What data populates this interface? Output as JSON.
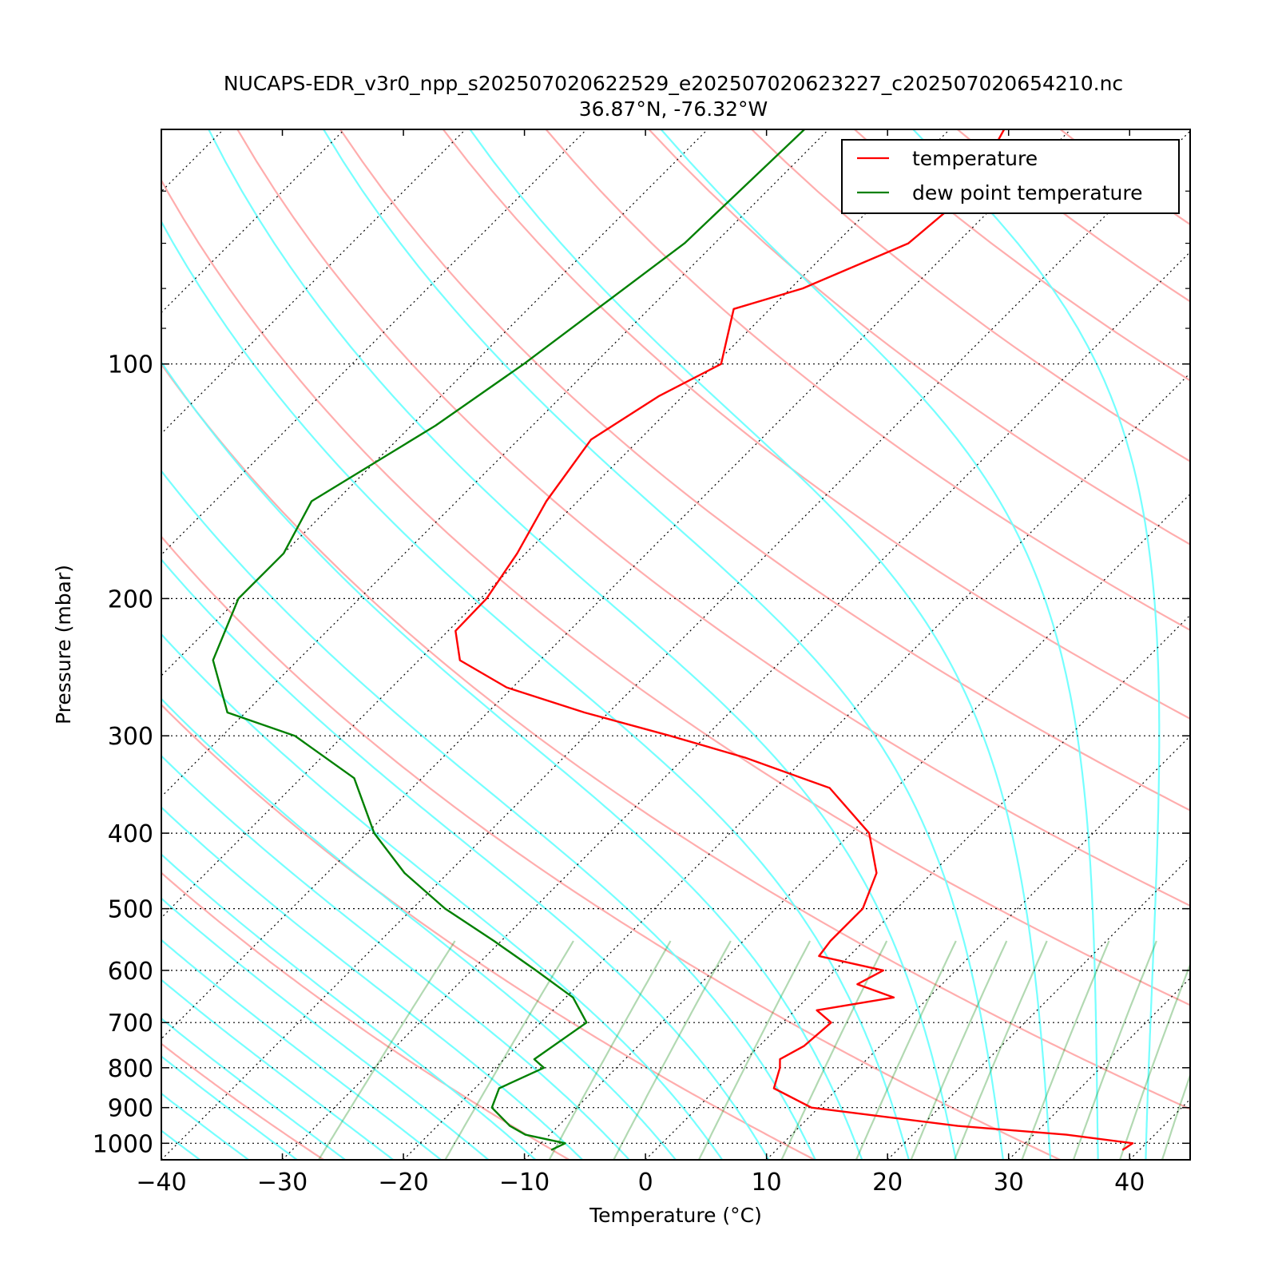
{
  "chart_data": {
    "type": "line",
    "title": "NUCAPS-EDR_v3r0_npp_s202507020622529_e202507020623227_c202507020654210.nc",
    "subtitle": "36.87°N, -76.32°W",
    "xlabel": "Temperature (°C)",
    "ylabel": "Pressure (mbar)",
    "xlim": [
      -40,
      45
    ],
    "ylim": [
      1050,
      50
    ],
    "y_scale": "log",
    "skew_degrees": 45,
    "grid": true,
    "legend_position": "top-right",
    "x_ticks": [
      "−40",
      "−30",
      "−20",
      "−10",
      "0",
      "10",
      "20",
      "30",
      "40"
    ],
    "y_ticks": [
      "100",
      "200",
      "300",
      "400",
      "500",
      "600",
      "700",
      "800",
      "900",
      "1000"
    ],
    "series": [
      {
        "name": "temperature",
        "color": "#ff0000",
        "p": [
          50,
          60,
          70,
          80,
          85,
          100,
          110,
          125,
          150,
          175,
          200,
          220,
          240,
          260,
          280,
          300,
          320,
          350,
          400,
          450,
          500,
          550,
          575,
          600,
          625,
          650,
          675,
          700,
          750,
          780,
          800,
          850,
          900,
          950,
          975,
          1000,
          1020
        ],
        "t": [
          -55.5,
          -53.2,
          -54.0,
          -59.0,
          -63.0,
          -59.5,
          -62.0,
          -64.0,
          -62.6,
          -60.7,
          -59.5,
          -59.4,
          -56.6,
          -50.5,
          -42.0,
          -33.0,
          -25.0,
          -15.5,
          -8.5,
          -4.6,
          -2.8,
          -2.8,
          -2.5,
          4.0,
          3.0,
          7.1,
          1.8,
          4.0,
          3.7,
          2.8,
          3.5,
          4.7,
          9.4,
          23.0,
          32.7,
          38.9,
          38.6
        ]
      },
      {
        "name": "dew point temperature",
        "color": "#008000",
        "p": [
          50,
          70,
          100,
          120,
          150,
          175,
          200,
          240,
          280,
          300,
          340,
          400,
          450,
          500,
          550,
          600,
          650,
          700,
          780,
          800,
          850,
          900,
          950,
          975,
          1000,
          1020
        ],
        "t": [
          -72.0,
          -72.5,
          -75.8,
          -78.0,
          -82.0,
          -80.0,
          -80.0,
          -77.0,
          -71.5,
          -64.0,
          -55.6,
          -49.4,
          -43.6,
          -37.3,
          -30.6,
          -24.7,
          -19.4,
          -16.2,
          -17.5,
          -16.0,
          -18.0,
          -17.0,
          -14.0,
          -12.0,
          -8.0,
          -8.6
        ]
      }
    ]
  }
}
